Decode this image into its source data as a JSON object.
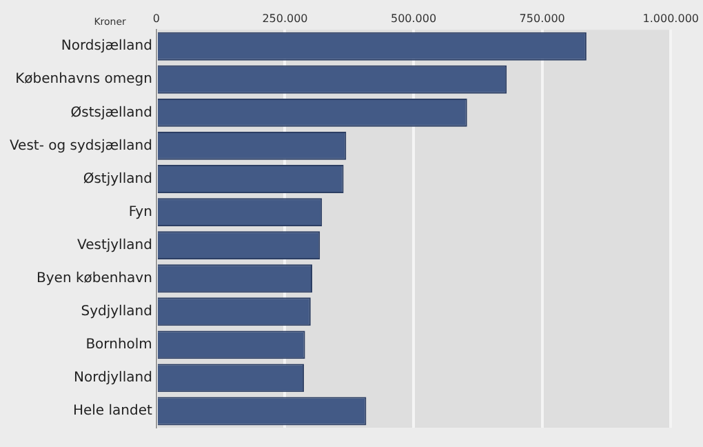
{
  "chart_data": {
    "type": "bar",
    "orientation": "horizontal",
    "xlabel": "Kroner",
    "categories": [
      "Nordsjælland",
      "Københavns omegn",
      "Østsjælland",
      "Vest- og sydsjælland",
      "Østjylland",
      "Fyn",
      "Vestjylland",
      "Byen københavn",
      "Sydjylland",
      "Bornholm",
      "Nordjylland",
      "Hele landet"
    ],
    "values": [
      836000,
      681000,
      604000,
      369000,
      364000,
      322000,
      318000,
      303000,
      300000,
      289000,
      287000,
      408000
    ],
    "color": "#435a86",
    "xlim": [
      0,
      1000000
    ],
    "xticks": [
      0,
      {
        "value": 250000,
        "label": "250.000"
      },
      {
        "value": 500000,
        "label": "500.000"
      },
      {
        "value": 750000,
        "label": "750.000"
      },
      {
        "value": 1000000,
        "label": "1.000.000"
      }
    ],
    "grid": "x"
  }
}
